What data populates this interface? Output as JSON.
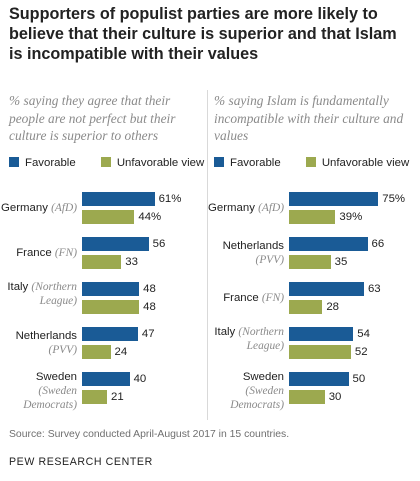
{
  "title": "Supporters of populist parties are more likely to believe that their culture is superior and that Islam is incompatible with their values",
  "source": "Source: Survey conducted April-August 2017 in 15 countries.",
  "org": "PEW RESEARCH CENTER",
  "colors": {
    "favorable": "#1a5b96",
    "unfavorable": "#9ca94f"
  },
  "legend": {
    "favorable": "Favorable",
    "unfavorable": "Unfavorable view"
  },
  "chart_data": [
    {
      "type": "bar",
      "orientation": "horizontal",
      "subtitle": "% saying they agree that their people are not perfect but their culture is superior to others",
      "xlim": [
        0,
        100
      ],
      "value_suffix_first": "%",
      "categories": [
        {
          "name": "Germany",
          "party": "(AfD)"
        },
        {
          "name": "France",
          "party": "(FN)"
        },
        {
          "name": "Italy",
          "party": "(Northern League)"
        },
        {
          "name": "Netherlands",
          "party": "(PVV)"
        },
        {
          "name": "Sweden",
          "party": "(Sweden Democrats)"
        }
      ],
      "series": [
        {
          "name": "Favorable",
          "values": [
            61,
            56,
            48,
            47,
            40
          ]
        },
        {
          "name": "Unfavorable view",
          "values": [
            44,
            33,
            48,
            24,
            21
          ]
        }
      ]
    },
    {
      "type": "bar",
      "orientation": "horizontal",
      "subtitle": "% saying Islam is fundamentally incompatible with their culture and values",
      "xlim": [
        0,
        100
      ],
      "value_suffix_first": "%",
      "categories": [
        {
          "name": "Germany",
          "party": "(AfD)"
        },
        {
          "name": "Netherlands",
          "party": "(PVV)"
        },
        {
          "name": "France",
          "party": "(FN)"
        },
        {
          "name": "Italy",
          "party": "(Northern League)"
        },
        {
          "name": "Sweden",
          "party": "(Sweden Democrats)"
        }
      ],
      "series": [
        {
          "name": "Favorable",
          "values": [
            75,
            66,
            63,
            54,
            50
          ]
        },
        {
          "name": "Unfavorable view",
          "values": [
            39,
            35,
            28,
            52,
            30
          ]
        }
      ]
    }
  ]
}
